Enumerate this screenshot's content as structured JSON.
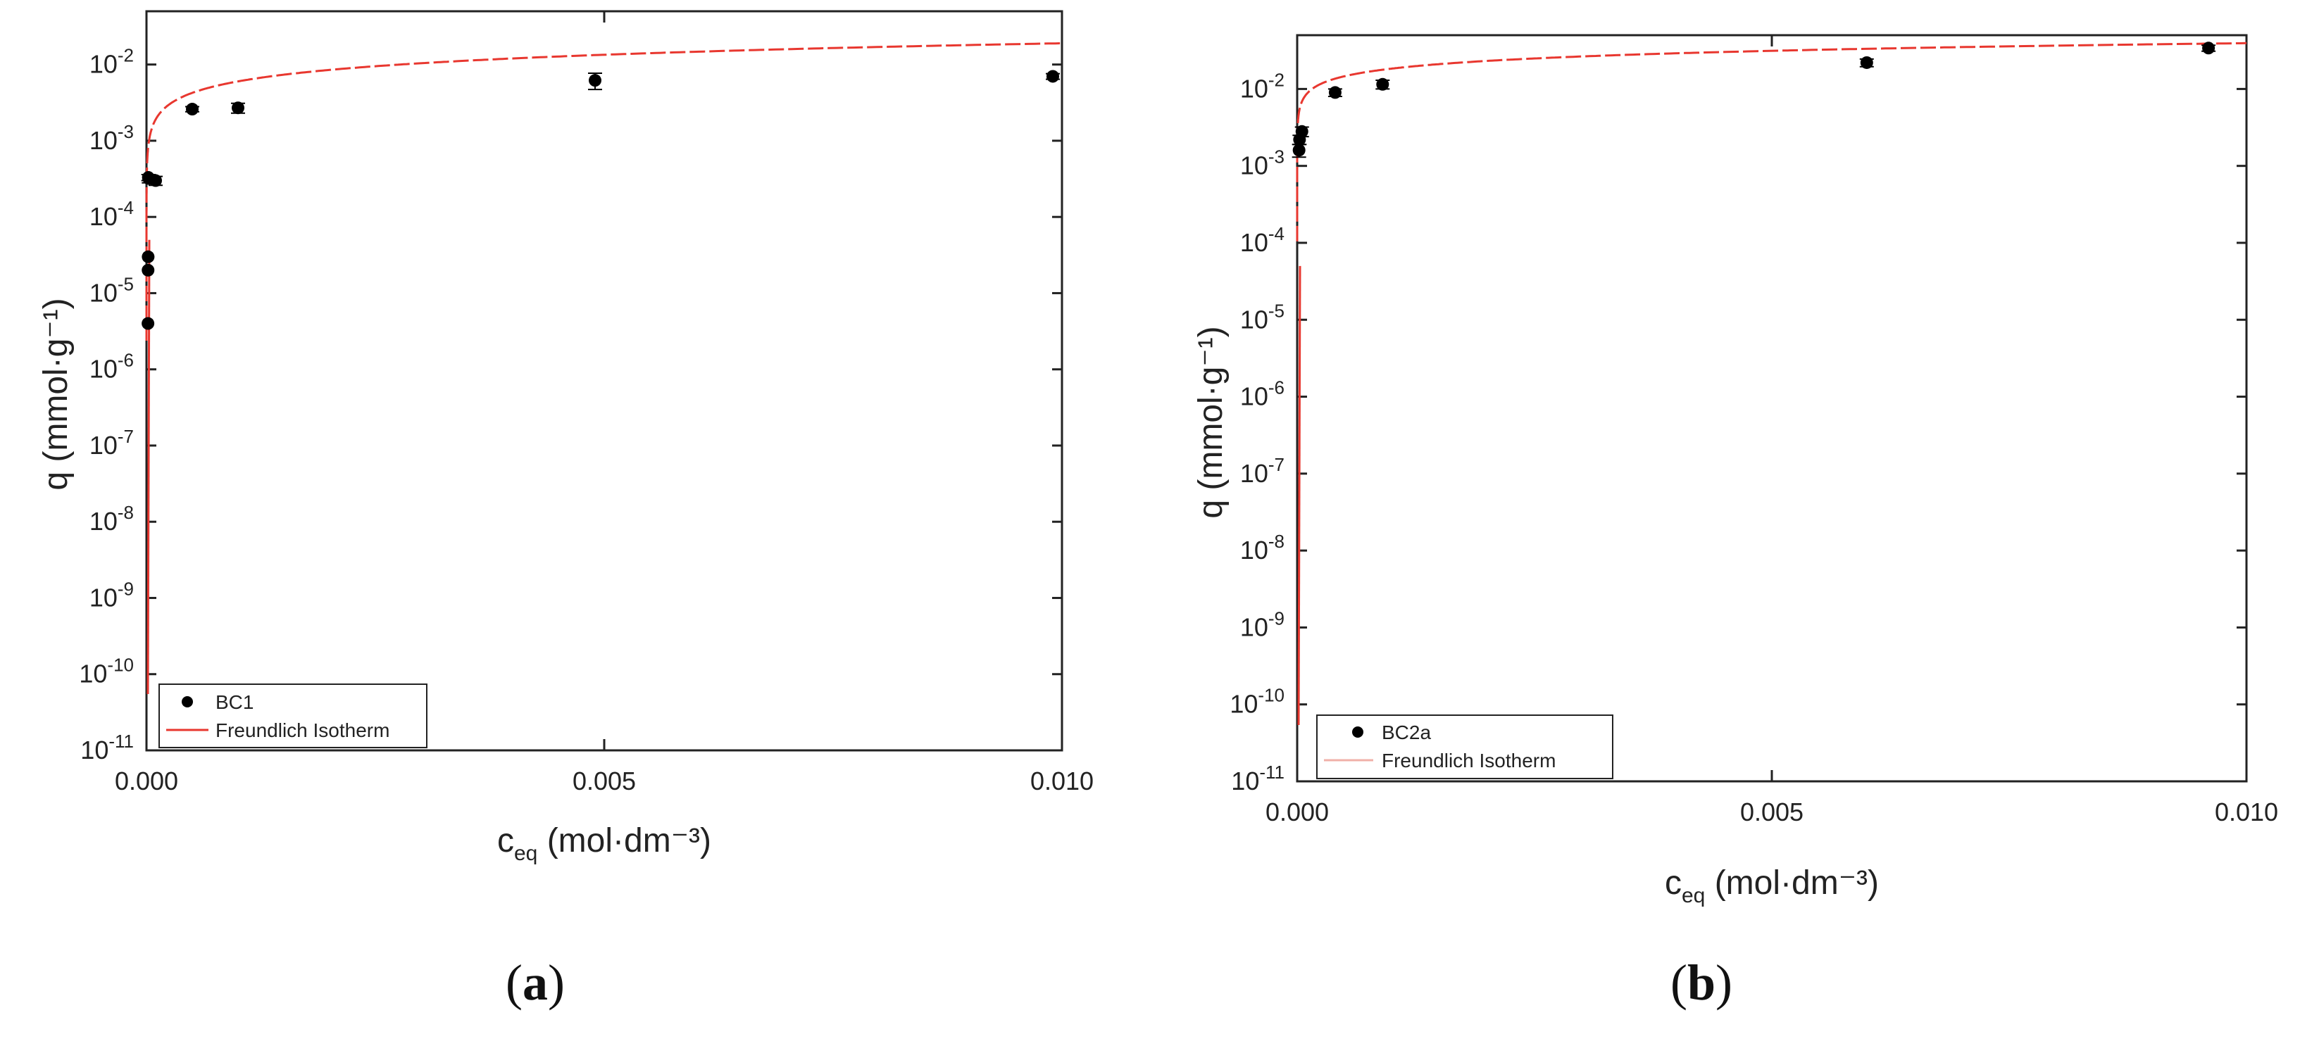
{
  "chart_data": [
    {
      "type": "scatter",
      "panel_label": "a",
      "xlabel": "c",
      "xlabel_sub": "eq",
      "xlabel_unit": " (mol·dm⁻³)",
      "ylabel": "q (mmol·g⁻¹)",
      "xlim": [
        0,
        0.01
      ],
      "ylim": [
        1e-11,
        0.05
      ],
      "y_scale": "log",
      "x_ticks": [
        "0.000",
        "0.005",
        "0.010"
      ],
      "y_ticks": [
        {
          "base": "10",
          "exp": "-11"
        },
        {
          "base": "10",
          "exp": "-10"
        },
        {
          "base": "10",
          "exp": "-9"
        },
        {
          "base": "10",
          "exp": "-8"
        },
        {
          "base": "10",
          "exp": "-7"
        },
        {
          "base": "10",
          "exp": "-6"
        },
        {
          "base": "10",
          "exp": "-5"
        },
        {
          "base": "10",
          "exp": "-4"
        },
        {
          "base": "10",
          "exp": "-3"
        },
        {
          "base": "10",
          "exp": "-2"
        }
      ],
      "legend_position": "bottom-left",
      "series": [
        {
          "name": "BC1",
          "kind": "points",
          "color": "#000000",
          "x": [
            1e-06,
            2e-06,
            3e-06,
            5e-06,
            1e-05,
            0.0001,
            0.0005,
            0.001,
            0.0049,
            0.0099
          ],
          "y": [
            4e-06,
            2e-05,
            3e-05,
            0.00033,
            0.00032,
            0.0003,
            0.0026,
            0.0027,
            0.0062,
            0.007
          ],
          "err": [
            0,
            0,
            0,
            3e-05,
            4e-05,
            4e-05,
            0.0002,
            0.0004,
            0.0015,
            0.0006
          ]
        },
        {
          "name": "Freundlich Isotherm",
          "kind": "line",
          "color": "#e8372f",
          "model": {
            "K": 0.19,
            "n": 0.5
          }
        }
      ]
    },
    {
      "type": "scatter",
      "panel_label": "b",
      "xlabel": "c",
      "xlabel_sub": "eq",
      "xlabel_unit": " (mol·dm⁻³)",
      "ylabel": "q (mmol·g⁻¹)",
      "xlim": [
        0,
        0.01
      ],
      "ylim": [
        1e-11,
        0.05
      ],
      "y_scale": "log",
      "x_ticks": [
        "0.000",
        "0.005",
        "0.010"
      ],
      "y_ticks": [
        {
          "base": "10",
          "exp": "-11"
        },
        {
          "base": "10",
          "exp": "-10"
        },
        {
          "base": "10",
          "exp": "-9"
        },
        {
          "base": "10",
          "exp": "-8"
        },
        {
          "base": "10",
          "exp": "-7"
        },
        {
          "base": "10",
          "exp": "-6"
        },
        {
          "base": "10",
          "exp": "-5"
        },
        {
          "base": "10",
          "exp": "-4"
        },
        {
          "base": "10",
          "exp": "-3"
        },
        {
          "base": "10",
          "exp": "-2"
        }
      ],
      "legend_position": "bottom-left",
      "series": [
        {
          "name": "BC2a",
          "kind": "points",
          "color": "#000000",
          "x": [
            5e-06,
            1e-05,
            5e-05,
            0.0004,
            0.0009,
            0.006,
            0.0096
          ],
          "y": [
            0.0016,
            0.0022,
            0.0028,
            0.009,
            0.0115,
            0.022,
            0.034
          ],
          "err": [
            0.0003,
            0.0003,
            0.0004,
            0.001,
            0.0015,
            0.0025,
            0.003
          ]
        },
        {
          "name": "Freundlich Isotherm",
          "kind": "line",
          "color": "#e8372f",
          "model": {
            "K": 0.18,
            "n": 0.33
          }
        }
      ]
    }
  ]
}
